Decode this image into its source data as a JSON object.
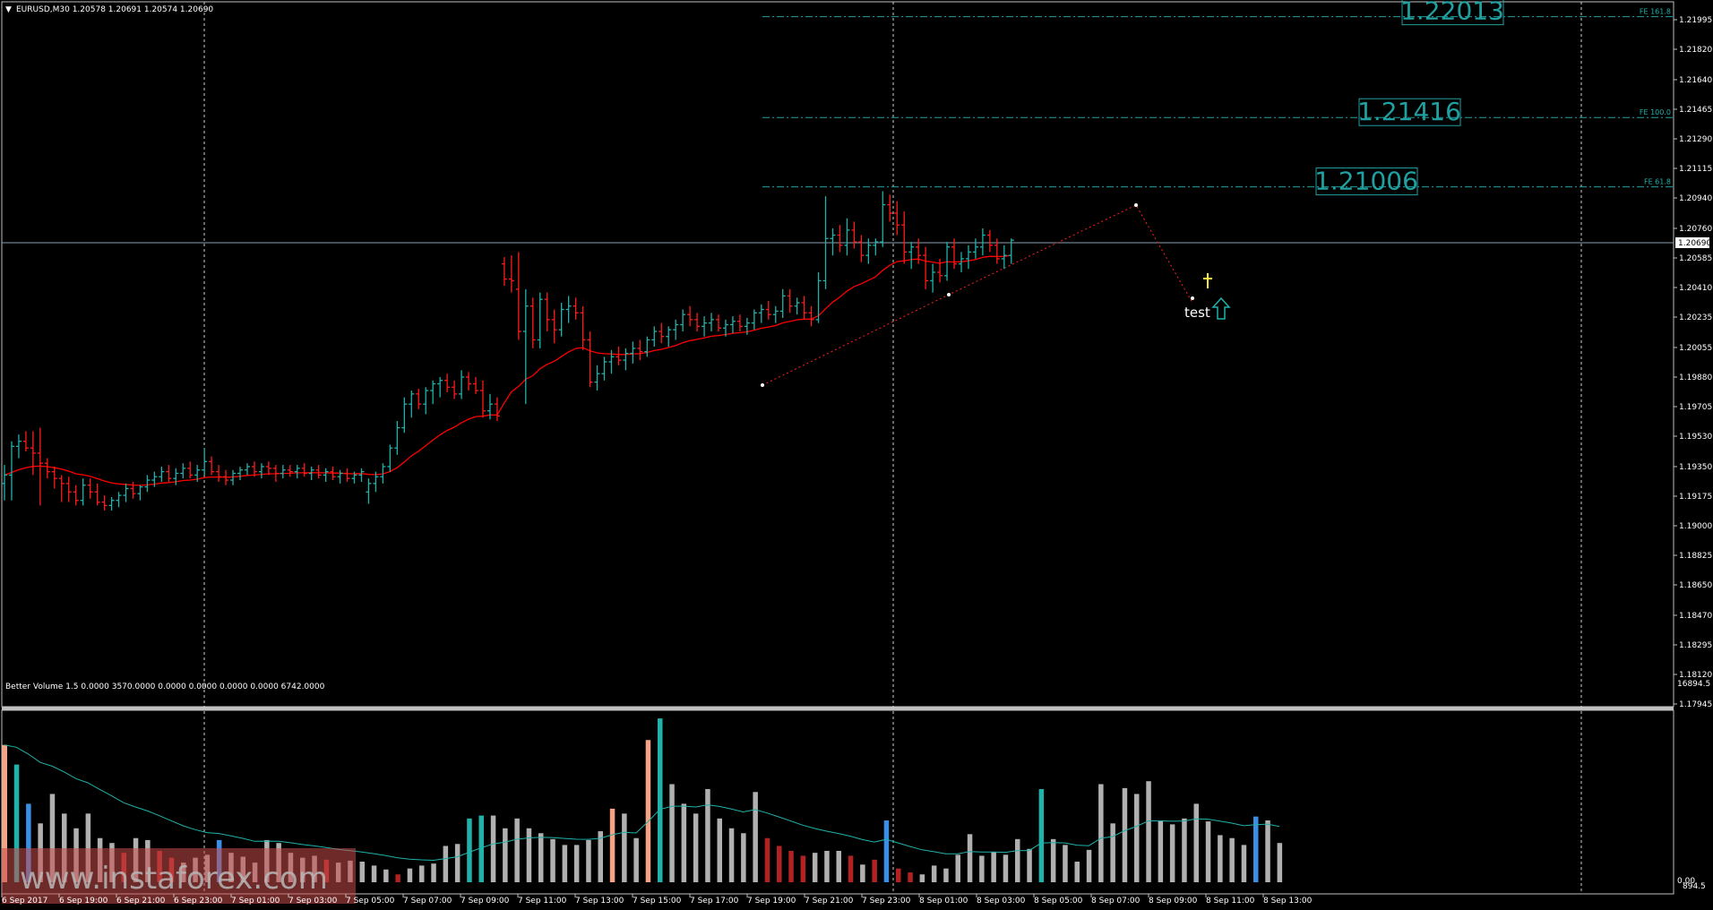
{
  "chart_data": {
    "type": "candlestick",
    "symbol_header": "EURUSD,M30  1.20578 1.20691 1.20574 1.20690",
    "current_price": "1.20690",
    "price_axis_labels": [
      "1.21995",
      "1.21820",
      "1.21640",
      "1.21465",
      "1.21290",
      "1.21115",
      "1.20940",
      "1.20760",
      "1.20585",
      "1.20410",
      "1.20235",
      "1.20055",
      "1.19880",
      "1.19705",
      "1.19530",
      "1.19350",
      "1.19175",
      "1.19000",
      "1.18825",
      "1.18650",
      "1.18470",
      "1.18295",
      "1.18120",
      "1.17945"
    ],
    "time_axis_labels": [
      "6 Sep 2017",
      "6 Sep 19:00",
      "6 Sep 21:00",
      "6 Sep 23:00",
      "7 Sep 01:00",
      "7 Sep 03:00",
      "7 Sep 05:00",
      "7 Sep 07:00",
      "7 Sep 09:00",
      "7 Sep 11:00",
      "7 Sep 13:00",
      "7 Sep 15:00",
      "7 Sep 17:00",
      "7 Sep 19:00",
      "7 Sep 21:00",
      "7 Sep 23:00",
      "8 Sep 01:00",
      "8 Sep 03:00",
      "8 Sep 05:00",
      "8 Sep 07:00",
      "8 Sep 09:00",
      "8 Sep 11:00",
      "8 Sep 13:00"
    ],
    "fibo_levels": [
      {
        "tag": "FE 161.8",
        "value": "1.22013",
        "price": 1.22013
      },
      {
        "tag": "FE 100.0",
        "value": "1.21416",
        "price": 1.21416
      },
      {
        "tag": "FE 61.8",
        "value": "1.21006",
        "price": 1.21006
      }
    ],
    "annotation_text": "test",
    "volume_indicator": {
      "header": "Better Volume 1.5 0.0000 3570.0000 0.0000 0.0000 0.0000 0.0000 6742.0000",
      "axis_max": "16894.5",
      "axis_min_a": "0.00",
      "axis_min_b": "894.5"
    },
    "watermark": "www.instaforex.com",
    "colors": {
      "bull": "#20b2aa",
      "bear": "#ff1a1a",
      "ma": "#ff0000",
      "fibo": "#20a0a0",
      "grid": "#b0b0b0",
      "volume_ma": "#20b2aa"
    }
  }
}
